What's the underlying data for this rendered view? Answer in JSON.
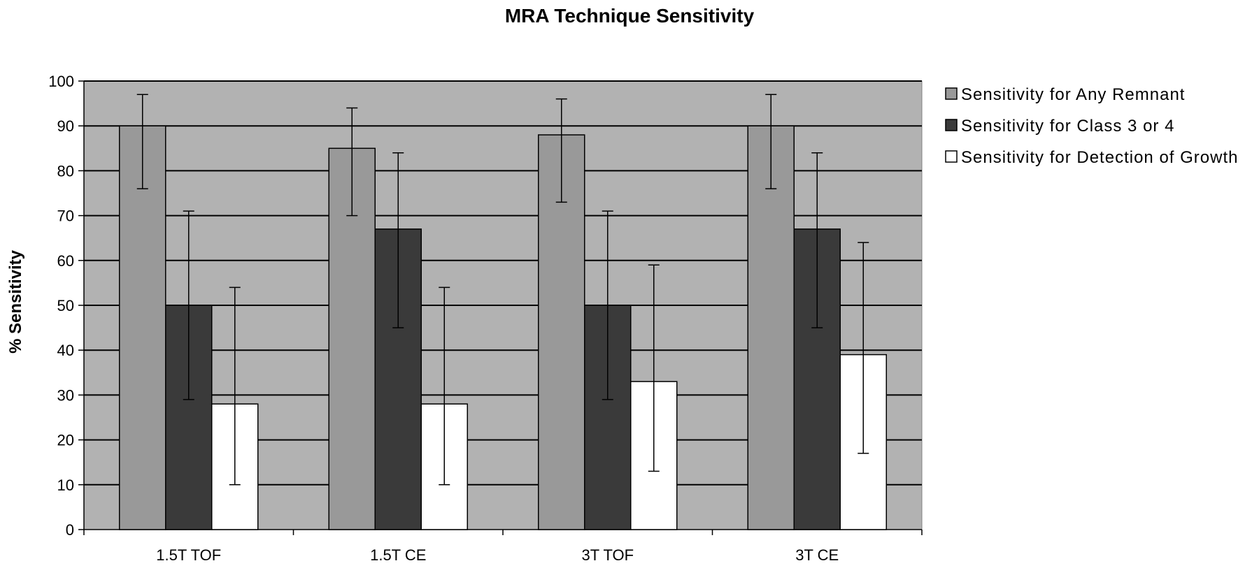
{
  "chart_data": {
    "type": "bar",
    "title": "MRA Technique Sensitivity",
    "xlabel": "",
    "ylabel": "% Sensitivity",
    "ylim": [
      0,
      100
    ],
    "yticks": [
      0,
      10,
      20,
      30,
      40,
      50,
      60,
      70,
      80,
      90,
      100
    ],
    "categories": [
      "1.5T TOF",
      "1.5T CE",
      "3T TOF",
      "3T CE"
    ],
    "series": [
      {
        "name": "Sensitivity for Any Remnant",
        "color": "#999999",
        "values": [
          90,
          85,
          88,
          90
        ],
        "error_low": [
          76,
          70,
          73,
          76
        ],
        "error_high": [
          97,
          94,
          96,
          97
        ]
      },
      {
        "name": "Sensitivity for Class 3 or 4",
        "color": "#3a3a3a",
        "values": [
          50,
          67,
          50,
          67
        ],
        "error_low": [
          29,
          45,
          29,
          45
        ],
        "error_high": [
          71,
          84,
          71,
          84
        ]
      },
      {
        "name": "Sensitivity for Detection of Growth",
        "color": "#ffffff",
        "values": [
          28,
          28,
          33,
          39
        ],
        "error_low": [
          10,
          10,
          13,
          17
        ],
        "error_high": [
          54,
          54,
          59,
          64
        ]
      }
    ],
    "plot_background": "#b2b2b2",
    "grid": true,
    "legend_position": "right"
  }
}
